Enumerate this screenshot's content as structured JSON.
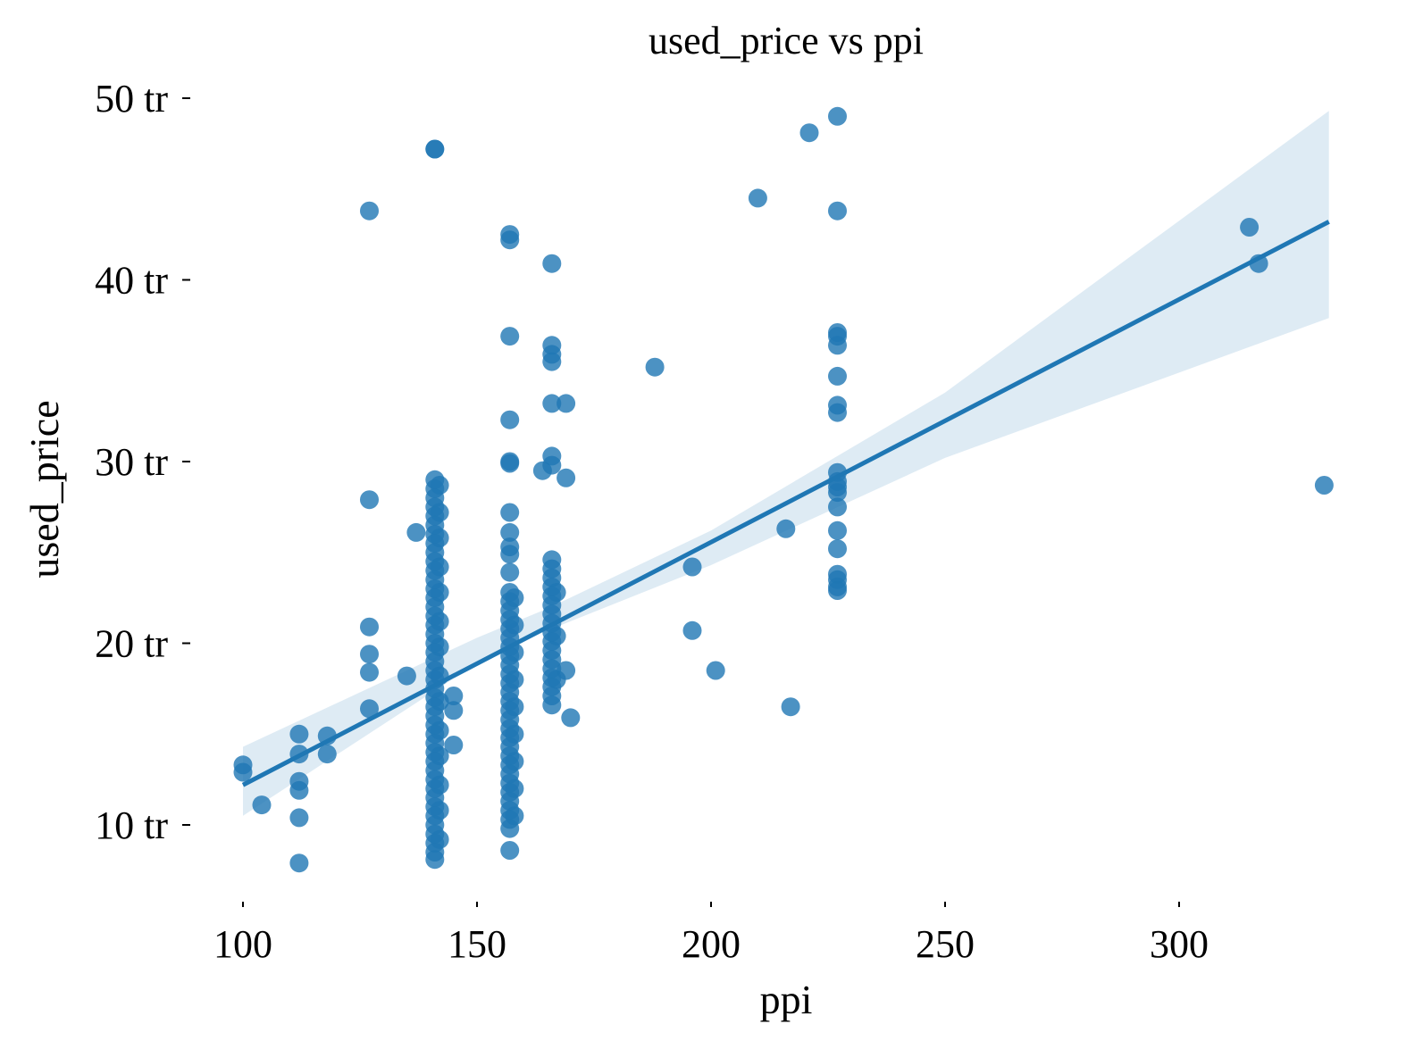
{
  "chart_data": {
    "type": "scatter",
    "title": "used_price vs ppi",
    "xlabel": "ppi",
    "ylabel": "used_price",
    "x_ticks": [
      100,
      150,
      200,
      250,
      300
    ],
    "x_tick_labels": [
      "100",
      "150",
      "200",
      "250",
      "300"
    ],
    "y_ticks": [
      10,
      20,
      30,
      40,
      50
    ],
    "y_tick_labels": [
      "10 tr",
      "20 tr",
      "30 tr",
      "40 tr",
      "50 tr"
    ],
    "xlim": [
      93,
      335
    ],
    "ylim": [
      5.5,
      50.5
    ],
    "grid": false,
    "colors": {
      "points": "#1f77b4",
      "line": "#1f77b4",
      "band": "#1f77b4"
    },
    "regression": {
      "x": [
        100,
        332
      ],
      "y": [
        12.2,
        43.2
      ]
    },
    "ci_band": {
      "x": [
        100,
        150,
        165,
        200,
        250,
        332
      ],
      "upper": [
        14.3,
        20.3,
        21.9,
        26.2,
        33.8,
        49.3
      ],
      "lower": [
        10.5,
        18.9,
        20.7,
        24.3,
        30.2,
        37.9
      ]
    },
    "points": [
      [
        100,
        13.3
      ],
      [
        100,
        12.9
      ],
      [
        104,
        11.1
      ],
      [
        112,
        15
      ],
      [
        112,
        13.9
      ],
      [
        112,
        12.4
      ],
      [
        112,
        11.9
      ],
      [
        112,
        10.4
      ],
      [
        112,
        7.9
      ],
      [
        118,
        14.9
      ],
      [
        118,
        13.9
      ],
      [
        127,
        43.8
      ],
      [
        127,
        27.9
      ],
      [
        127,
        20.9
      ],
      [
        127,
        19.4
      ],
      [
        127,
        18.4
      ],
      [
        127,
        16.4
      ],
      [
        135,
        18.2
      ],
      [
        137,
        26.1
      ],
      [
        141,
        47.2
      ],
      [
        141,
        47.2
      ],
      [
        141,
        29
      ],
      [
        141,
        28.5
      ],
      [
        141,
        28
      ],
      [
        141,
        27.5
      ],
      [
        141,
        27
      ],
      [
        141,
        26.5
      ],
      [
        141,
        26
      ],
      [
        141,
        25.5
      ],
      [
        141,
        25
      ],
      [
        141,
        24.5
      ],
      [
        141,
        24
      ],
      [
        141,
        23.5
      ],
      [
        141,
        23
      ],
      [
        141,
        22.5
      ],
      [
        141,
        22
      ],
      [
        141,
        21.5
      ],
      [
        141,
        21
      ],
      [
        141,
        20.5
      ],
      [
        141,
        20
      ],
      [
        141,
        19.5
      ],
      [
        141,
        19
      ],
      [
        141,
        18.5
      ],
      [
        141,
        18
      ],
      [
        141,
        17.5
      ],
      [
        141,
        17
      ],
      [
        141,
        16.5
      ],
      [
        141,
        16
      ],
      [
        141,
        15.5
      ],
      [
        141,
        15
      ],
      [
        141,
        14.5
      ],
      [
        141,
        14
      ],
      [
        141,
        13.5
      ],
      [
        141,
        13
      ],
      [
        141,
        12.5
      ],
      [
        141,
        12
      ],
      [
        141,
        11.5
      ],
      [
        141,
        11
      ],
      [
        141,
        10.5
      ],
      [
        141,
        10
      ],
      [
        141,
        9.5
      ],
      [
        141,
        9
      ],
      [
        141,
        8.5
      ],
      [
        141,
        8.1
      ],
      [
        142,
        28.7
      ],
      [
        142,
        27.2
      ],
      [
        142,
        25.8
      ],
      [
        142,
        24.2
      ],
      [
        142,
        22.8
      ],
      [
        142,
        21.2
      ],
      [
        142,
        19.8
      ],
      [
        142,
        18.2
      ],
      [
        142,
        16.8
      ],
      [
        142,
        15.2
      ],
      [
        142,
        13.8
      ],
      [
        142,
        12.2
      ],
      [
        142,
        10.8
      ],
      [
        142,
        9.2
      ],
      [
        145,
        17.1
      ],
      [
        145,
        16.3
      ],
      [
        145,
        14.4
      ],
      [
        157,
        42.5
      ],
      [
        157,
        42.2
      ],
      [
        157,
        36.9
      ],
      [
        157,
        32.3
      ],
      [
        157,
        30
      ],
      [
        157,
        29.9
      ],
      [
        157,
        27.2
      ],
      [
        157,
        26.1
      ],
      [
        157,
        25.3
      ],
      [
        157,
        24.9
      ],
      [
        157,
        23.9
      ],
      [
        157,
        22.8
      ],
      [
        157,
        22.3
      ],
      [
        157,
        21.8
      ],
      [
        157,
        21.3
      ],
      [
        157,
        20.8
      ],
      [
        157,
        20.3
      ],
      [
        157,
        19.8
      ],
      [
        157,
        19.3
      ],
      [
        157,
        18.8
      ],
      [
        157,
        18.3
      ],
      [
        157,
        17.8
      ],
      [
        157,
        17.3
      ],
      [
        157,
        16.8
      ],
      [
        157,
        16.3
      ],
      [
        157,
        15.8
      ],
      [
        157,
        15.3
      ],
      [
        157,
        14.8
      ],
      [
        157,
        14.3
      ],
      [
        157,
        13.8
      ],
      [
        157,
        13.3
      ],
      [
        157,
        12.8
      ],
      [
        157,
        12.3
      ],
      [
        157,
        11.8
      ],
      [
        157,
        11.3
      ],
      [
        157,
        10.8
      ],
      [
        157,
        10.3
      ],
      [
        157,
        9.8
      ],
      [
        157,
        8.6
      ],
      [
        158,
        22.5
      ],
      [
        158,
        21
      ],
      [
        158,
        19.5
      ],
      [
        158,
        18
      ],
      [
        158,
        16.5
      ],
      [
        158,
        15
      ],
      [
        158,
        13.5
      ],
      [
        158,
        12
      ],
      [
        158,
        10.5
      ],
      [
        164,
        29.5
      ],
      [
        166,
        40.9
      ],
      [
        166,
        36.4
      ],
      [
        166,
        35.9
      ],
      [
        166,
        35.5
      ],
      [
        166,
        33.2
      ],
      [
        166,
        30.3
      ],
      [
        166,
        29.8
      ],
      [
        166,
        24.6
      ],
      [
        166,
        24.1
      ],
      [
        166,
        23.6
      ],
      [
        166,
        23.1
      ],
      [
        166,
        22.6
      ],
      [
        166,
        22.1
      ],
      [
        166,
        21.6
      ],
      [
        166,
        21.1
      ],
      [
        166,
        20.6
      ],
      [
        166,
        20.1
      ],
      [
        166,
        19.6
      ],
      [
        166,
        19.1
      ],
      [
        166,
        18.6
      ],
      [
        166,
        18.1
      ],
      [
        166,
        17.6
      ],
      [
        166,
        17.1
      ],
      [
        166,
        16.6
      ],
      [
        167,
        22.8
      ],
      [
        167,
        20.4
      ],
      [
        167,
        18
      ],
      [
        169,
        33.2
      ],
      [
        169,
        29.1
      ],
      [
        169,
        18.5
      ],
      [
        170,
        15.9
      ],
      [
        188,
        35.2
      ],
      [
        196,
        24.2
      ],
      [
        196,
        20.7
      ],
      [
        201,
        18.5
      ],
      [
        210,
        44.5
      ],
      [
        216,
        26.3
      ],
      [
        217,
        16.5
      ],
      [
        221,
        48.1
      ],
      [
        227,
        49
      ],
      [
        227,
        43.8
      ],
      [
        227,
        37.1
      ],
      [
        227,
        36.9
      ],
      [
        227,
        36.4
      ],
      [
        227,
        34.7
      ],
      [
        227,
        33.1
      ],
      [
        227,
        32.7
      ],
      [
        227,
        29.4
      ],
      [
        227,
        28.9
      ],
      [
        227,
        28.6
      ],
      [
        227,
        28.3
      ],
      [
        227,
        27.5
      ],
      [
        227,
        26.2
      ],
      [
        227,
        25.2
      ],
      [
        227,
        23.8
      ],
      [
        227,
        23.5
      ],
      [
        227,
        23.1
      ],
      [
        227,
        22.9
      ],
      [
        315,
        42.9
      ],
      [
        317,
        40.9
      ],
      [
        331,
        28.7
      ]
    ]
  }
}
